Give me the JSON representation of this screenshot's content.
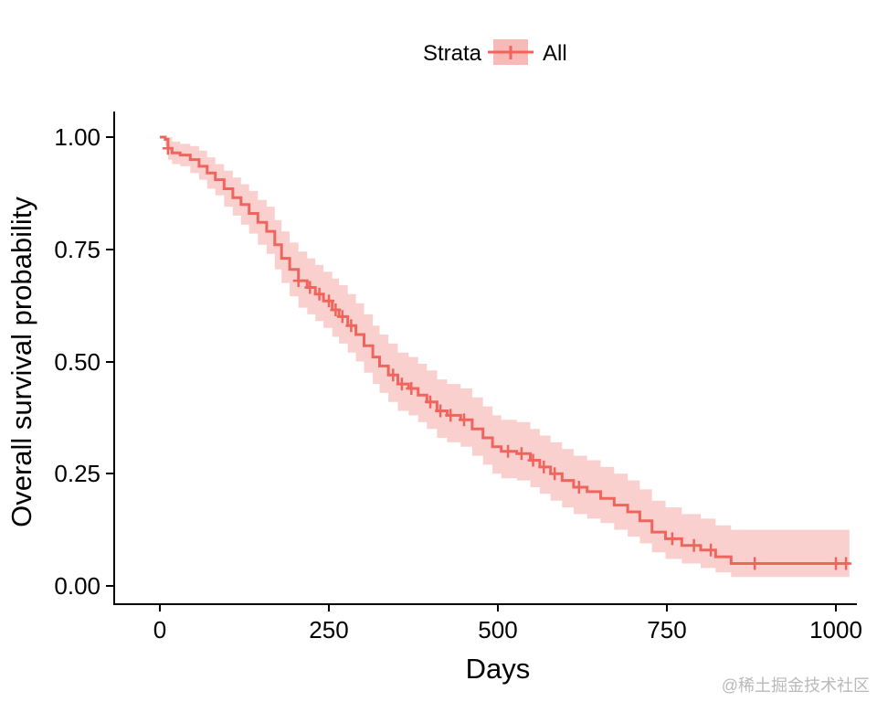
{
  "watermark": "@稀土掘金技术社区",
  "chart_data": {
    "type": "line",
    "subtype": "kaplan-meier-step-with-ci-ribbon",
    "title": "",
    "xlabel": "Days",
    "ylabel": "Overall survival probability",
    "xlim": [
      0,
      1030
    ],
    "ylim": [
      0,
      1
    ],
    "grid": false,
    "x_ticks": [
      0,
      250,
      500,
      750,
      1000
    ],
    "x_tick_labels": [
      "0",
      "250",
      "500",
      "750",
      "1000"
    ],
    "y_ticks": [
      0,
      0.25,
      0.5,
      0.75,
      1
    ],
    "y_tick_labels": [
      "0.00",
      "0.25",
      "0.50",
      "0.75",
      "1.00"
    ],
    "legend": {
      "title": "Strata",
      "position": "top",
      "items": [
        {
          "label": "All"
        }
      ]
    },
    "colors": {
      "line": "#EF655D",
      "ribbon": "#EF655D",
      "ribbon_opacity": 0.3,
      "legend_key_opacity": 0.45
    },
    "series": [
      {
        "name": "All",
        "time": [
          0,
          8,
          12,
          18,
          30,
          45,
          58,
          70,
          82,
          95,
          108,
          120,
          132,
          145,
          158,
          170,
          180,
          192,
          205,
          218,
          230,
          242,
          255,
          265,
          278,
          290,
          302,
          315,
          325,
          338,
          352,
          368,
          382,
          395,
          410,
          425,
          445,
          462,
          478,
          492,
          505,
          528,
          548,
          562,
          578,
          595,
          612,
          632,
          652,
          672,
          692,
          710,
          728,
          748,
          772,
          800,
          822,
          845,
          1020
        ],
        "surv": [
          1.0,
          0.995,
          0.975,
          0.965,
          0.96,
          0.95,
          0.935,
          0.92,
          0.905,
          0.885,
          0.865,
          0.85,
          0.83,
          0.81,
          0.79,
          0.76,
          0.73,
          0.705,
          0.68,
          0.665,
          0.65,
          0.635,
          0.615,
          0.6,
          0.58,
          0.56,
          0.535,
          0.51,
          0.49,
          0.47,
          0.45,
          0.44,
          0.425,
          0.41,
          0.39,
          0.38,
          0.37,
          0.35,
          0.33,
          0.31,
          0.3,
          0.295,
          0.28,
          0.265,
          0.25,
          0.235,
          0.22,
          0.21,
          0.195,
          0.18,
          0.165,
          0.145,
          0.12,
          0.105,
          0.09,
          0.08,
          0.065,
          0.05,
          0.05
        ],
        "ci_lower": [
          1.0,
          0.98,
          0.95,
          0.94,
          0.935,
          0.92,
          0.905,
          0.885,
          0.87,
          0.845,
          0.825,
          0.805,
          0.785,
          0.76,
          0.74,
          0.705,
          0.675,
          0.645,
          0.62,
          0.605,
          0.59,
          0.575,
          0.555,
          0.54,
          0.52,
          0.5,
          0.475,
          0.45,
          0.43,
          0.41,
          0.39,
          0.38,
          0.365,
          0.35,
          0.33,
          0.32,
          0.31,
          0.29,
          0.27,
          0.25,
          0.24,
          0.235,
          0.22,
          0.205,
          0.19,
          0.175,
          0.16,
          0.15,
          0.14,
          0.125,
          0.11,
          0.095,
          0.075,
          0.06,
          0.05,
          0.04,
          0.03,
          0.02,
          0.02
        ],
        "ci_upper": [
          1.0,
          1.0,
          1.0,
          0.99,
          0.985,
          0.98,
          0.97,
          0.955,
          0.94,
          0.925,
          0.91,
          0.895,
          0.88,
          0.86,
          0.845,
          0.815,
          0.79,
          0.765,
          0.745,
          0.73,
          0.715,
          0.7,
          0.685,
          0.67,
          0.65,
          0.63,
          0.605,
          0.58,
          0.56,
          0.54,
          0.52,
          0.51,
          0.495,
          0.48,
          0.46,
          0.45,
          0.44,
          0.42,
          0.4,
          0.38,
          0.37,
          0.365,
          0.35,
          0.335,
          0.32,
          0.305,
          0.29,
          0.28,
          0.265,
          0.25,
          0.235,
          0.215,
          0.19,
          0.175,
          0.16,
          0.15,
          0.135,
          0.125,
          0.125
        ],
        "censor_times": [
          12,
          205,
          222,
          236,
          250,
          260,
          270,
          283,
          345,
          358,
          372,
          400,
          415,
          430,
          450,
          515,
          535,
          552,
          568,
          584,
          620,
          758,
          790,
          815,
          880,
          1000,
          1015
        ],
        "censor_surv": [
          0.975,
          0.68,
          0.665,
          0.65,
          0.635,
          0.615,
          0.6,
          0.58,
          0.47,
          0.45,
          0.44,
          0.41,
          0.39,
          0.38,
          0.37,
          0.3,
          0.295,
          0.28,
          0.265,
          0.25,
          0.22,
          0.105,
          0.09,
          0.08,
          0.05,
          0.05,
          0.05
        ]
      }
    ]
  }
}
